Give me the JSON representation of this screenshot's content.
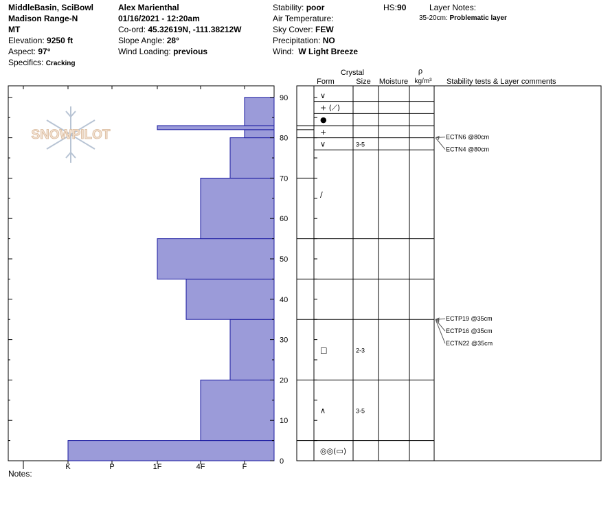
{
  "header": {
    "location": "MiddleBasin, SciBowl",
    "range": "Madison Range-N",
    "state": "MT",
    "elevation_label": "Elevation:",
    "elevation_value": "9250 ft",
    "aspect_label": "Aspect:",
    "aspect_value": "97°",
    "specifics_label": "Specifics:",
    "specifics_value": "Cracking",
    "observer": "Alex Marienthal",
    "datetime": "01/16/2021 - 12:20am",
    "coord_label": "Co-ord:",
    "coord_value": "45.32619N, -111.38212W",
    "slope_label": "Slope Angle:",
    "slope_value": "28°",
    "wind_loading_label": "Wind Loading:",
    "wind_loading_value": "previous",
    "stability_label": "Stability:",
    "stability_value": "poor",
    "air_temp_label": "Air Temperature:",
    "sky_label": "Sky Cover:",
    "sky_value": "FEW",
    "precip_label": "Precipitation:",
    "precip_value": "NO",
    "wind_label": "Wind:",
    "wind_value": "W Light Breeze",
    "hs_label": "HS:",
    "hs_value": "90",
    "layer_notes_label": "Layer Notes:",
    "layer_note_range": "35-20cm:",
    "layer_note_text": "Problematic layer"
  },
  "table_headers": {
    "crystal": "Crystal",
    "form": "Form",
    "size": "Size",
    "moisture": "Moisture",
    "rho": "ρ",
    "density_unit": "kg/m³",
    "comments": "Stability tests & Layer comments"
  },
  "notes_label": "Notes:",
  "watermark": "SNOWPILOT",
  "colors": {
    "layer_fill": "#9b9bd9",
    "layer_stroke": "#1a1aa0"
  },
  "chart_data": {
    "type": "bar",
    "description_axis": "hand hardness vs height",
    "hardness_scale": [
      "I",
      "K",
      "P",
      "1F",
      "4F",
      "F"
    ],
    "y_ticks": [
      0,
      10,
      20,
      30,
      40,
      50,
      60,
      70,
      80,
      90
    ],
    "ylim": [
      0,
      92
    ],
    "layers": [
      {
        "bottom": 0,
        "top": 5,
        "hardness": "K"
      },
      {
        "bottom": 5,
        "top": 20,
        "hardness": "4F"
      },
      {
        "bottom": 20,
        "top": 35,
        "hardness": "F+"
      },
      {
        "bottom": 35,
        "top": 45,
        "hardness": "4F+"
      },
      {
        "bottom": 45,
        "top": 55,
        "hardness": "1F"
      },
      {
        "bottom": 55,
        "top": 70,
        "hardness": "4F"
      },
      {
        "bottom": 70,
        "top": 80,
        "hardness": "F+"
      },
      {
        "bottom": 80,
        "top": 82,
        "hardness": "F"
      },
      {
        "bottom": 82,
        "top": 83,
        "hardness": "1F"
      },
      {
        "bottom": 83,
        "top": 90,
        "hardness": "F"
      }
    ],
    "crystal_rows": [
      {
        "bottom": 0,
        "top": 5,
        "form": "◎◎(▭)",
        "size": ""
      },
      {
        "bottom": 5,
        "top": 20,
        "form": "∧",
        "size": "3-5"
      },
      {
        "bottom": 20,
        "top": 35,
        "form": "□",
        "size": "2-3"
      },
      {
        "bottom": 35,
        "top": 45,
        "form": "",
        "size": ""
      },
      {
        "bottom": 45,
        "top": 55,
        "form": "",
        "size": ""
      },
      {
        "bottom": 55,
        "top": 77,
        "form": "∕",
        "size": ""
      },
      {
        "bottom": 77,
        "top": 80,
        "form": "∨",
        "size": "3-5"
      },
      {
        "bottom": 80,
        "top": 83,
        "form": "+",
        "size": ""
      },
      {
        "bottom": 83,
        "top": 86,
        "form": "●",
        "size": ""
      },
      {
        "bottom": 86,
        "top": 89,
        "form": "+ (⟋)",
        "size": ""
      },
      {
        "bottom": 89,
        "top": 92,
        "form": "∨",
        "size": ""
      }
    ],
    "tests": [
      {
        "height": 80,
        "label": "ECTN6 @80cm"
      },
      {
        "height": 80,
        "label": "ECTN4 @80cm"
      },
      {
        "height": 35,
        "label": "ECTP19 @35cm"
      },
      {
        "height": 35,
        "label": "ECTP16 @35cm"
      },
      {
        "height": 35,
        "label": "ECTN22 @35cm"
      }
    ]
  }
}
